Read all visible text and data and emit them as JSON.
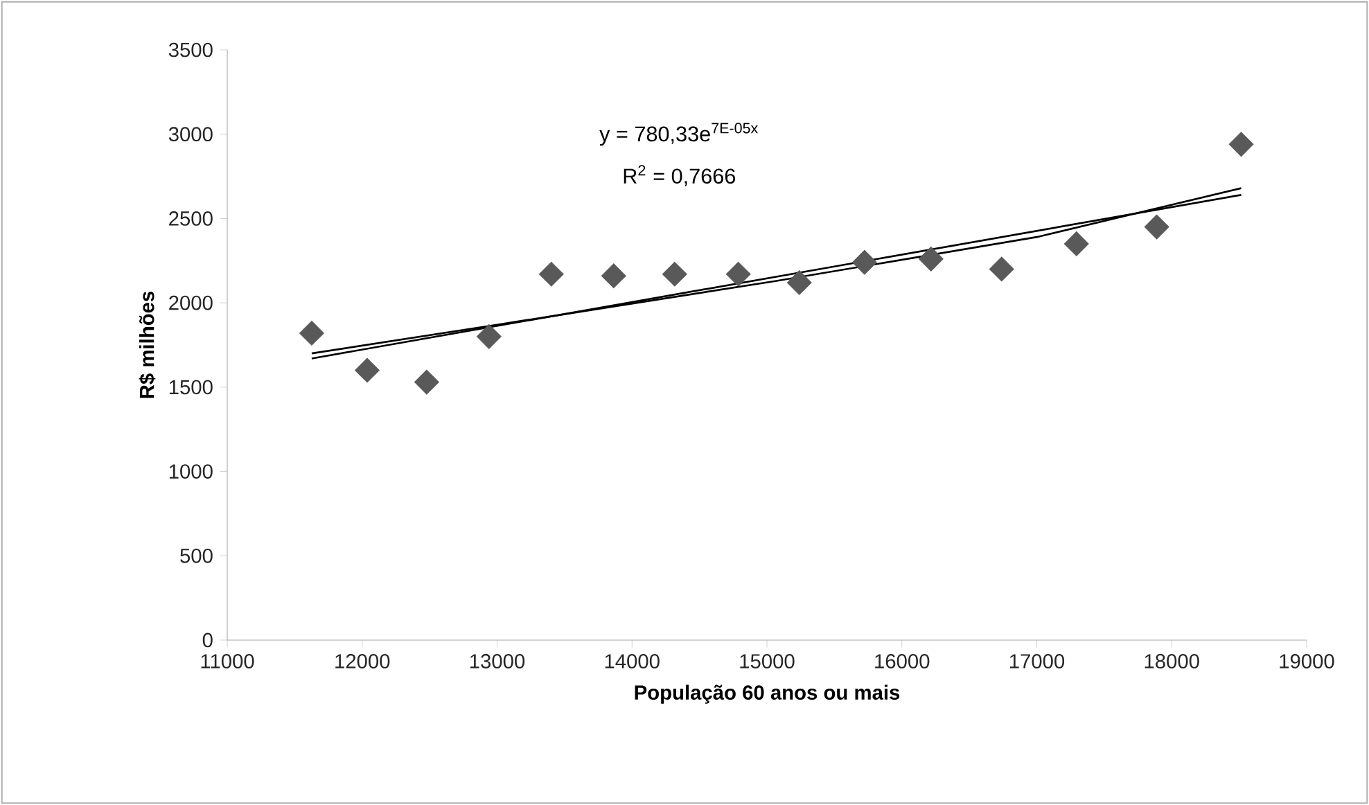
{
  "chart_data": {
    "type": "scatter",
    "xlabel": "População 60  anos ou mais",
    "ylabel": "R$ milhões",
    "annotations": [
      "y = 780,33e$^{7E-05x}$",
      "R$^{2}$ = 0,7666"
    ],
    "xlim": [
      11000,
      19000
    ],
    "xticks": [
      11000,
      12000,
      13000,
      14000,
      15000,
      16000,
      17000,
      18000,
      19000
    ],
    "ylim": [
      0,
      3500
    ],
    "yticks": [
      0,
      500,
      1000,
      1500,
      2000,
      2500,
      3000,
      3500
    ],
    "grid": false,
    "series": [
      {
        "color": "#595959",
        "marker": "diamond",
        "x": [
          11626,
          12037,
          12478,
          12940,
          13402,
          13864,
          14316,
          14788,
          15240,
          15723,
          16216,
          16739,
          17294,
          17889,
          18515
        ],
        "values": [
          1820,
          1600,
          1530,
          1800,
          2170,
          2160,
          2170,
          2170,
          2120,
          2240,
          2260,
          2200,
          2350,
          2450,
          2940
        ]
      },
      {
        "type": "line",
        "color": "#000000",
        "marker": "none",
        "line_style": "solid",
        "x": [
          11626,
          18515
        ],
        "values": [
          1670,
          2640
        ]
      },
      {
        "type": "line",
        "color": "#000000",
        "marker": "none",
        "line_style": "solid",
        "x": [
          11626,
          13000,
          15070,
          17000,
          18515
        ],
        "values": [
          1700,
          1870,
          2130,
          2390,
          2680
        ]
      }
    ]
  }
}
